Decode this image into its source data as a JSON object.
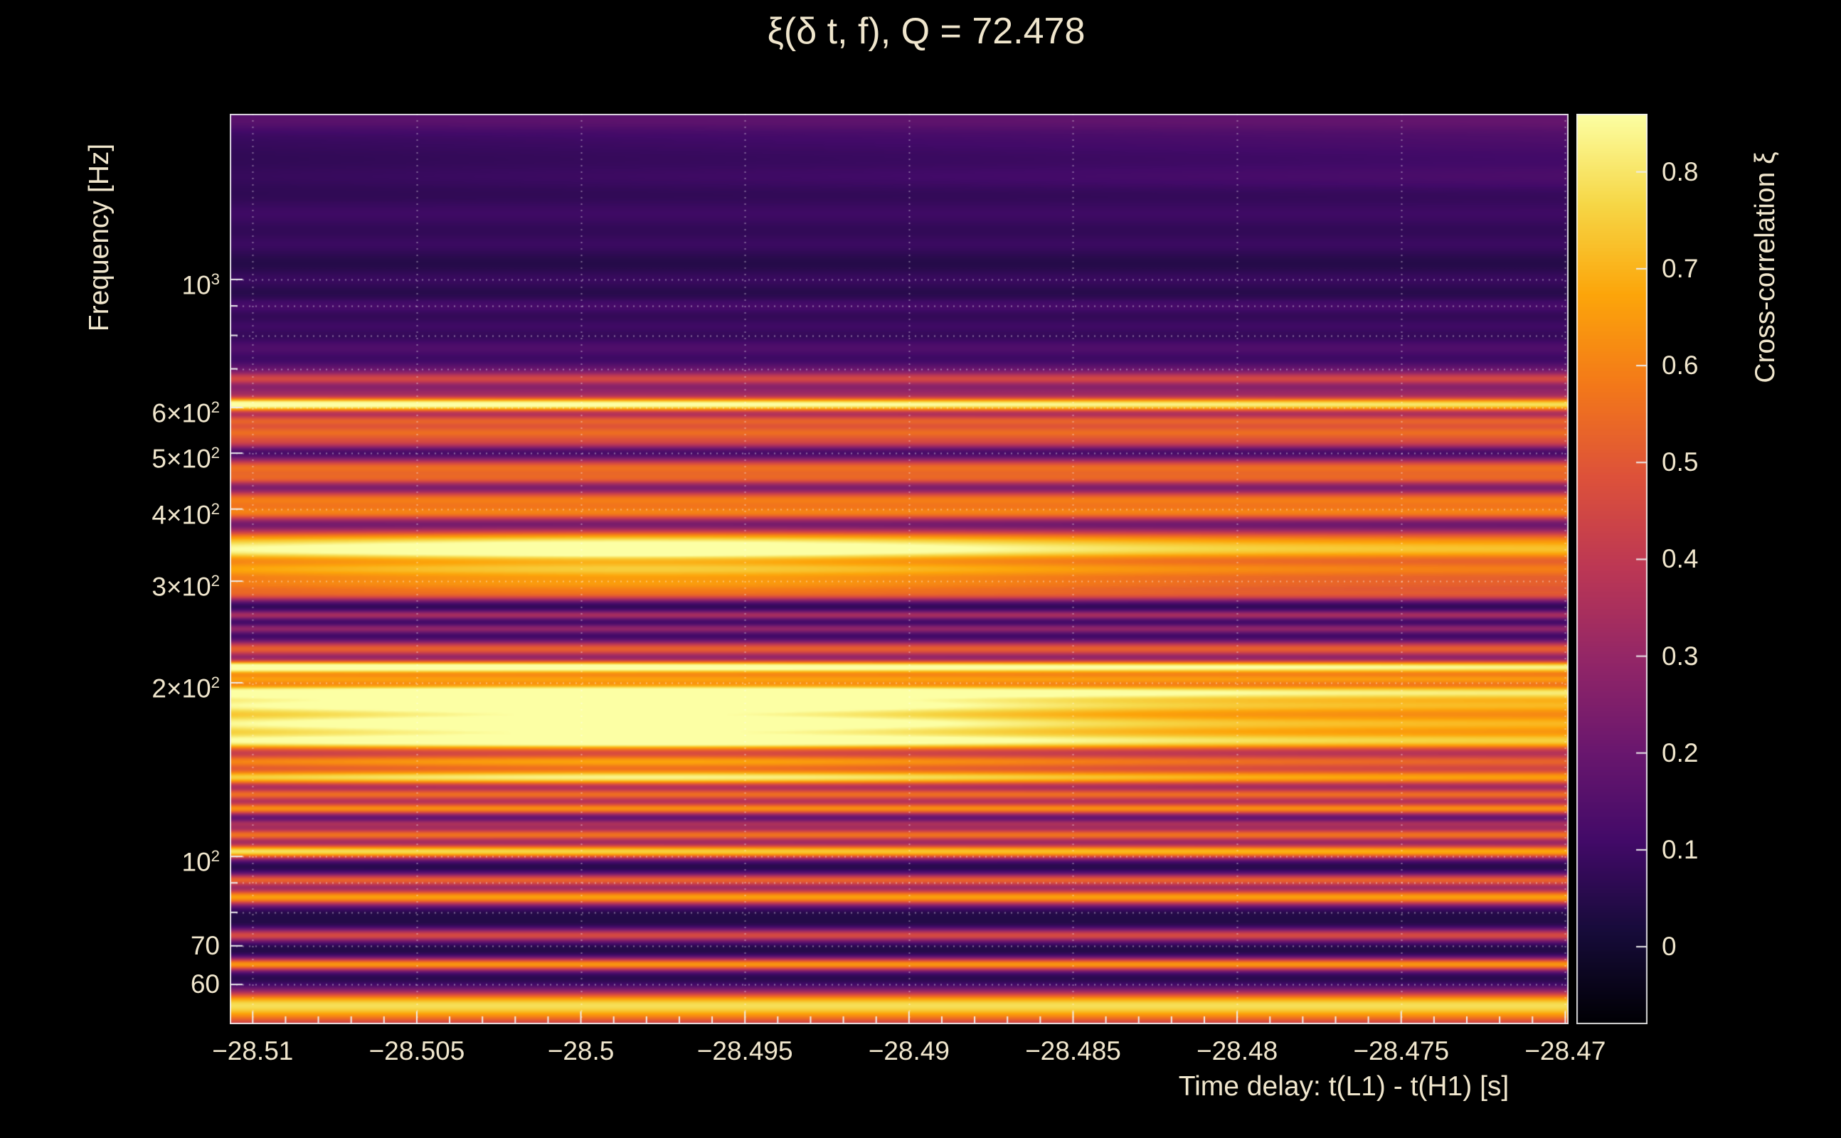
{
  "title": "ξ(δ t, f), Q = 72.478",
  "text_color": "#f0e6cd",
  "background_color": "#000000",
  "chart_data": {
    "type": "heatmap",
    "title": "ξ(δ t, f), Q = 72.478",
    "xlabel": "Time delay: t(L1) - t(H1) [s]",
    "ylabel": "Frequency [Hz]",
    "colorbar_label": "Cross-correlation ξ",
    "x_range": [
      -28.5107,
      -28.4699
    ],
    "x_ticks": [
      -28.51,
      -28.505,
      -28.5,
      -28.495,
      -28.49,
      -28.485,
      -28.48,
      -28.475,
      -28.47
    ],
    "x_tick_labels": [
      "−28.51",
      "−28.505",
      "−28.5",
      "−28.495",
      "−28.49",
      "−28.485",
      "−28.48",
      "−28.475",
      "−28.47"
    ],
    "y_scale": "log",
    "y_range_hz": [
      51.2,
      1937
    ],
    "y_ticks": [
      {
        "f": 1000,
        "text": "10",
        "sup": "3"
      },
      {
        "f": 600,
        "text": "6×10",
        "sup": "2"
      },
      {
        "f": 500,
        "text": "5×10",
        "sup": "2"
      },
      {
        "f": 400,
        "text": "4×10",
        "sup": "2"
      },
      {
        "f": 300,
        "text": "3×10",
        "sup": "2"
      },
      {
        "f": 200,
        "text": "2×10",
        "sup": "2"
      },
      {
        "f": 100,
        "text": "10",
        "sup": "2"
      },
      {
        "f": 70,
        "text": "70",
        "sup": ""
      },
      {
        "f": 60,
        "text": "60",
        "sup": ""
      }
    ],
    "y_grid_freqs": [
      1000,
      900,
      800,
      700,
      600,
      500,
      400,
      300,
      200,
      100,
      90,
      80,
      70,
      60
    ],
    "colorbar_range": [
      -0.08,
      0.86
    ],
    "colorbar_ticks": [
      {
        "v": 0,
        "label": "0"
      },
      {
        "v": 0.1,
        "label": "0.1"
      },
      {
        "v": 0.2,
        "label": "0.2"
      },
      {
        "v": 0.3,
        "label": "0.3"
      },
      {
        "v": 0.4,
        "label": "0.4"
      },
      {
        "v": 0.5,
        "label": "0.5"
      },
      {
        "v": 0.6,
        "label": "0.6"
      },
      {
        "v": 0.7,
        "label": "0.7"
      },
      {
        "v": 0.8,
        "label": "0.8"
      }
    ],
    "colormap": "inferno",
    "colormap_stops": [
      [
        0.0,
        "#000004"
      ],
      [
        0.1,
        "#160b39"
      ],
      [
        0.2,
        "#420a68"
      ],
      [
        0.3,
        "#6a176e"
      ],
      [
        0.4,
        "#932667"
      ],
      [
        0.5,
        "#bc3754"
      ],
      [
        0.6,
        "#dd513a"
      ],
      [
        0.7,
        "#f37819"
      ],
      [
        0.8,
        "#fca50a"
      ],
      [
        0.9,
        "#f6d746"
      ],
      [
        1.0,
        "#fcffa4"
      ]
    ],
    "background_value": 0.04,
    "x_profiles": {
      "flat": {
        "base": 1.0,
        "amp": 0.0,
        "center": 0.5,
        "sigma": 1.0,
        "slope": 0.0
      },
      "hotspot": {
        "base": 0.86,
        "amp": 0.22,
        "center": 0.32,
        "sigma": 0.24,
        "slope": -0.04
      },
      "strong_hotspot": {
        "base": 0.78,
        "amp": 0.3,
        "center": 0.3,
        "sigma": 0.2,
        "slope": -0.06
      },
      "fade_right": {
        "base": 1.02,
        "amp": 0.0,
        "center": 0.5,
        "sigma": 1.0,
        "slope": -0.18
      },
      "rise_right": {
        "base": 0.75,
        "amp": 0.0,
        "center": 0.5,
        "sigma": 1.0,
        "slope": 0.55
      }
    },
    "bands": [
      {
        "f": 1900,
        "w": 0.015,
        "v": 0.1,
        "p": "flat"
      },
      {
        "f": 1750,
        "w": 0.03,
        "v": 0.09,
        "p": "rise_right"
      },
      {
        "f": 1500,
        "w": 0.02,
        "v": 0.08,
        "p": "rise_right"
      },
      {
        "f": 1300,
        "w": 0.02,
        "v": 0.06,
        "p": "flat"
      },
      {
        "f": 1150,
        "w": 0.015,
        "v": 0.05,
        "p": "flat"
      },
      {
        "f": 1000,
        "w": 0.012,
        "v": 0.05,
        "p": "flat"
      },
      {
        "f": 900,
        "w": 0.01,
        "v": 0.08,
        "p": "flat"
      },
      {
        "f": 830,
        "w": 0.012,
        "v": 0.06,
        "p": "flat"
      },
      {
        "f": 760,
        "w": 0.012,
        "v": 0.1,
        "p": "flat"
      },
      {
        "f": 700,
        "w": 0.01,
        "v": 0.13,
        "p": "flat"
      },
      {
        "f": 672,
        "w": 0.008,
        "v": 0.38,
        "p": "flat"
      },
      {
        "f": 640,
        "w": 0.008,
        "v": 0.22,
        "p": "flat"
      },
      {
        "f": 607,
        "w": 0.009,
        "v": 0.8,
        "p": "fade_right"
      },
      {
        "f": 570,
        "w": 0.008,
        "v": 0.42,
        "p": "flat"
      },
      {
        "f": 543,
        "w": 0.01,
        "v": 0.48,
        "p": "flat"
      },
      {
        "f": 520,
        "w": 0.008,
        "v": 0.3,
        "p": "flat"
      },
      {
        "f": 472,
        "w": 0.012,
        "v": 0.5,
        "p": "flat"
      },
      {
        "f": 450,
        "w": 0.008,
        "v": 0.35,
        "p": "flat"
      },
      {
        "f": 416,
        "w": 0.012,
        "v": 0.52,
        "p": "flat"
      },
      {
        "f": 393,
        "w": 0.01,
        "v": 0.48,
        "p": "flat"
      },
      {
        "f": 355,
        "w": 0.014,
        "v": 0.55,
        "p": "hotspot"
      },
      {
        "f": 337,
        "w": 0.012,
        "v": 0.68,
        "p": "strong_hotspot"
      },
      {
        "f": 315,
        "w": 0.012,
        "v": 0.58,
        "p": "hotspot"
      },
      {
        "f": 296,
        "w": 0.012,
        "v": 0.5,
        "p": "hotspot"
      },
      {
        "f": 283,
        "w": 0.008,
        "v": 0.32,
        "p": "flat"
      },
      {
        "f": 262,
        "w": 0.006,
        "v": 0.3,
        "p": "flat"
      },
      {
        "f": 248,
        "w": 0.006,
        "v": 0.25,
        "p": "flat"
      },
      {
        "f": 229,
        "w": 0.01,
        "v": 0.48,
        "p": "flat"
      },
      {
        "f": 213,
        "w": 0.008,
        "v": 0.83,
        "p": "fade_right"
      },
      {
        "f": 203,
        "w": 0.008,
        "v": 0.55,
        "p": "flat"
      },
      {
        "f": 193,
        "w": 0.009,
        "v": 0.78,
        "p": "hotspot"
      },
      {
        "f": 183,
        "w": 0.012,
        "v": 0.8,
        "p": "strong_hotspot"
      },
      {
        "f": 170,
        "w": 0.014,
        "v": 0.84,
        "p": "strong_hotspot"
      },
      {
        "f": 158,
        "w": 0.012,
        "v": 0.78,
        "p": "hotspot"
      },
      {
        "f": 146,
        "w": 0.01,
        "v": 0.55,
        "p": "hotspot"
      },
      {
        "f": 137,
        "w": 0.01,
        "v": 0.72,
        "p": "hotspot"
      },
      {
        "f": 128,
        "w": 0.008,
        "v": 0.5,
        "p": "flat"
      },
      {
        "f": 121,
        "w": 0.008,
        "v": 0.58,
        "p": "flat"
      },
      {
        "f": 114,
        "w": 0.006,
        "v": 0.28,
        "p": "flat"
      },
      {
        "f": 109,
        "w": 0.008,
        "v": 0.52,
        "p": "flat"
      },
      {
        "f": 102,
        "w": 0.009,
        "v": 0.68,
        "p": "fade_right"
      },
      {
        "f": 91,
        "w": 0.008,
        "v": 0.48,
        "p": "flat"
      },
      {
        "f": 85,
        "w": 0.01,
        "v": 0.62,
        "p": "flat"
      },
      {
        "f": 73,
        "w": 0.008,
        "v": 0.42,
        "p": "flat"
      },
      {
        "f": 65,
        "w": 0.008,
        "v": 0.6,
        "p": "flat"
      },
      {
        "f": 56,
        "w": 0.015,
        "v": 0.48,
        "p": "flat"
      },
      {
        "f": 53,
        "w": 0.02,
        "v": 0.45,
        "p": "flat"
      }
    ]
  }
}
